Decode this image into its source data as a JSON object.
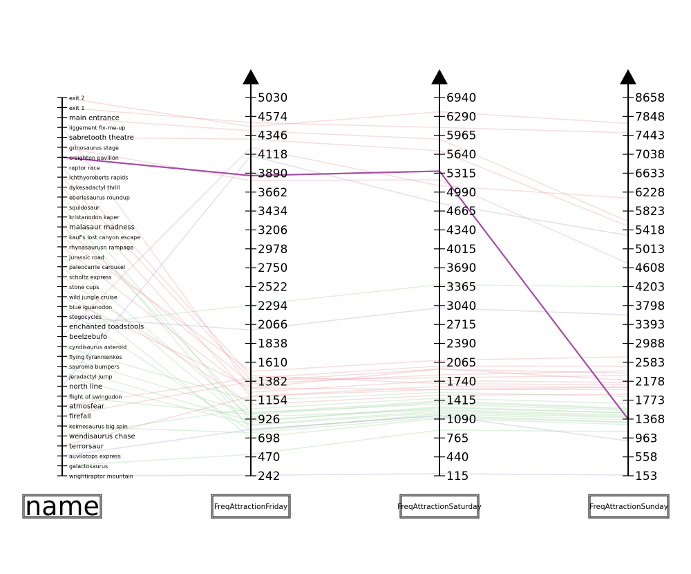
{
  "chart_data": {
    "type": "parallel_coordinates",
    "axes": [
      {
        "key": "name",
        "label": "name",
        "kind": "categorical"
      },
      {
        "key": "fri",
        "label": "FreqAttractionFriday",
        "kind": "numeric",
        "ticks": [
          242,
          470,
          698,
          926,
          1154,
          1382,
          1610,
          1838,
          2066,
          2294,
          2522,
          2750,
          2978,
          3206,
          3434,
          3662,
          3890,
          4118,
          4346,
          4574,
          5030
        ]
      },
      {
        "key": "sat",
        "label": "FreqAttractionSaturday",
        "kind": "numeric",
        "ticks": [
          115,
          440,
          765,
          1090,
          1415,
          1740,
          2065,
          2390,
          2715,
          3040,
          3365,
          3690,
          4015,
          4340,
          4665,
          4990,
          5315,
          5640,
          5965,
          6290,
          6940
        ]
      },
      {
        "key": "sun",
        "label": "FreqAttractionSunday",
        "kind": "numeric",
        "ticks": [
          153,
          558,
          963,
          1368,
          1773,
          2178,
          2583,
          2988,
          3393,
          3798,
          4203,
          4608,
          5013,
          5418,
          5823,
          6228,
          6633,
          7038,
          7443,
          7848,
          8658
        ]
      }
    ],
    "names": [
      "exit 2",
      "exit 1",
      "main entrance",
      "liggement fix-me-up",
      "sabretooth theatre",
      "grinosaurus stage",
      "creighton pavilion",
      "raptor race",
      "ichthyoroberts rapids",
      "dykesadactyl thrill",
      "eberlesaurus roundup",
      "squidosaur",
      "kristanodon kaper",
      "malasaur madness",
      "kauf's lost canyon escape",
      "rhynasaurusn rampage",
      "jurassic road",
      "paleocarrie carousel",
      "scholtz express",
      "stone cups",
      "wild jungle cruise",
      "blue iguanodon",
      "stegocycles",
      "enchanted toadstools",
      "beelzebufo",
      "cyndisaurus asteroid",
      "flying tyrannienkos",
      "sauroma bumpers",
      "jeradactyl jump",
      "north line",
      "flight of swingodon",
      "atmosfear",
      "firefall",
      "keimosaurus big spin",
      "wendisaurus chase",
      "terrorsaur",
      "auvilotops express",
      "galactosaurus",
      "wrightiraptor mountain"
    ],
    "highlighted": {
      "name": "creighton pavilion",
      "fri": 3860,
      "sat": 5350,
      "sun": 1368,
      "color": "#a64ca6"
    },
    "faint_lines": [
      {
        "name": "exit 2",
        "fri": 4450,
        "sat": 6450,
        "sun": 7700,
        "color": "#e8a0a8"
      },
      {
        "name": "exit 1",
        "fri": 4500,
        "sat": 6100,
        "sun": 7500,
        "color": "#e8a0a8"
      },
      {
        "name": "main entrance",
        "fri": 4400,
        "sat": 5900,
        "sun": 5600,
        "color": "#e8a0a8"
      },
      {
        "name": "liggement fix-me-up",
        "fri": 1300,
        "sat": 1950,
        "sun": 2200,
        "color": "#e8a0a8"
      },
      {
        "name": "sabretooth theatre",
        "fri": 4300,
        "sat": 5700,
        "sun": 5500,
        "color": "#e8a0a8"
      },
      {
        "name": "grinosaurus stage",
        "fri": 3800,
        "sat": 5200,
        "sun": 4700,
        "color": "#e8a0a8"
      },
      {
        "name": "raptor race",
        "fri": 1450,
        "sat": 1700,
        "sun": 2100,
        "color": "#e8a0a8"
      },
      {
        "name": "ichthyoroberts rapids",
        "fri": 1400,
        "sat": 1800,
        "sun": 2300,
        "color": "#e8a0a8"
      },
      {
        "name": "dykesadactyl thrill",
        "fri": 1200,
        "sat": 1650,
        "sun": 2050,
        "color": "#e8a0a8"
      },
      {
        "name": "eberlesaurus roundup",
        "fri": 900,
        "sat": 1300,
        "sun": 1500,
        "color": "#a6d8a6"
      },
      {
        "name": "squidosaur",
        "fri": 800,
        "sat": 1150,
        "sun": 1300,
        "color": "#a6d8a6"
      },
      {
        "name": "kristanodon kaper",
        "fri": 1000,
        "sat": 1400,
        "sun": 1600,
        "color": "#a6d8a6"
      },
      {
        "name": "malasaur madness",
        "fri": 1350,
        "sat": 1850,
        "sun": 2400,
        "color": "#e8a0a8"
      },
      {
        "name": "kauf's lost canyon escape",
        "fri": 1500,
        "sat": 2100,
        "sun": 2700,
        "color": "#e8a0a8"
      },
      {
        "name": "rhynasaurusn rampage",
        "fri": 1250,
        "sat": 1750,
        "sun": 2150,
        "color": "#e8a0a8"
      },
      {
        "name": "jurassic road",
        "fri": 950,
        "sat": 1250,
        "sun": 1450,
        "color": "#a6d8a6"
      },
      {
        "name": "paleocarrie carousel",
        "fri": 850,
        "sat": 1200,
        "sun": 1400,
        "color": "#a6d8a6"
      },
      {
        "name": "scholtz express",
        "fri": 1100,
        "sat": 1500,
        "sun": 1900,
        "color": "#e8a0a8"
      },
      {
        "name": "stone cups",
        "fri": 700,
        "sat": 1100,
        "sun": 1250,
        "color": "#a6d8a6"
      },
      {
        "name": "wild jungle cruise",
        "fri": 1300,
        "sat": 1600,
        "sun": 2000,
        "color": "#e8a0a8"
      },
      {
        "name": "blue iguanodon",
        "fri": 780,
        "sat": 1180,
        "sun": 1350,
        "color": "#a6d8a6"
      },
      {
        "name": "stegocycles",
        "fri": 2000,
        "sat": 3000,
        "sun": 3600,
        "color": "#b0a8d8"
      },
      {
        "name": "enchanted toadstools",
        "fri": 2300,
        "sat": 3400,
        "sun": 4200,
        "color": "#a6d8a6"
      },
      {
        "name": "beelzebufo",
        "fri": 4200,
        "sat": 5100,
        "sun": 6100,
        "color": "#e8a0a8"
      },
      {
        "name": "cyndisaurus asteroid",
        "fri": 1150,
        "sat": 1550,
        "sun": 1850,
        "color": "#a6d8a6"
      },
      {
        "name": "flying tyrannienkos",
        "fri": 1000,
        "sat": 1350,
        "sun": 1550,
        "color": "#a6d8a6"
      },
      {
        "name": "sauroma bumpers",
        "fri": 900,
        "sat": 1280,
        "sun": 1500,
        "color": "#a6d8a6"
      },
      {
        "name": "jeradactyl jump",
        "fri": 860,
        "sat": 1230,
        "sun": 1420,
        "color": "#a6d8a6"
      },
      {
        "name": "north line",
        "fri": 4100,
        "sat": 4800,
        "sun": 5300,
        "color": "#b0a8d8"
      },
      {
        "name": "flight of swingodon",
        "fri": 980,
        "sat": 1380,
        "sun": 1580,
        "color": "#a6d8a6"
      },
      {
        "name": "atmosfear",
        "fri": 1420,
        "sat": 2000,
        "sun": 2500,
        "color": "#e8a0a8"
      },
      {
        "name": "firefall",
        "fri": 1380,
        "sat": 1950,
        "sun": 2350,
        "color": "#e8a0a8"
      },
      {
        "name": "keimosaurus big spin",
        "fri": 760,
        "sat": 1120,
        "sun": 1300,
        "color": "#a6d8a6"
      },
      {
        "name": "wendisaurus chase",
        "fri": 1050,
        "sat": 1450,
        "sun": 1700,
        "color": "#a6d8a6"
      },
      {
        "name": "terrorsaur",
        "fri": 1200,
        "sat": 1600,
        "sun": 2050,
        "color": "#e8a0a8"
      },
      {
        "name": "auvilotops express",
        "fri": 800,
        "sat": 1150,
        "sun": 900,
        "color": "#b0a8d8"
      },
      {
        "name": "galactosaurus",
        "fri": 500,
        "sat": 900,
        "sun": 1100,
        "color": "#a6d8a6"
      },
      {
        "name": "wrightiraptor mountain",
        "fri": 250,
        "sat": 150,
        "sun": 170,
        "color": "#b0a8d8"
      }
    ],
    "grid": false,
    "legend": "none"
  }
}
